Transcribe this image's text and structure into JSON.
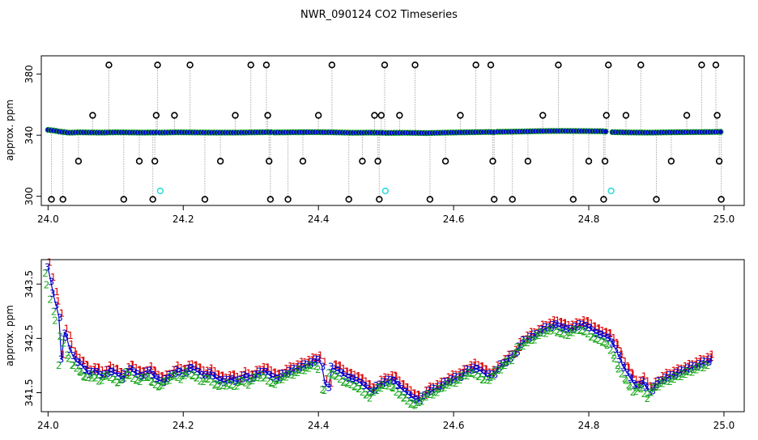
{
  "chart_data": [
    {
      "type": "scatter",
      "title": "NWR_090124  CO2 Timeseries",
      "xlabel": "",
      "ylabel": "approx. ppm",
      "xlim": [
        23.99,
        25.03
      ],
      "ylim": [
        294,
        392
      ],
      "xticks": [
        "24.0",
        "24.2",
        "24.4",
        "24.6",
        "24.8",
        "25.0"
      ],
      "yticks": [
        "300",
        "340",
        "380"
      ],
      "colors": {
        "baseline": "#0000cc",
        "baseline_outline": "#1faa1f",
        "spike": "#000000",
        "low_flag": "#33dddd",
        "connector": "#aaaaaa"
      },
      "baseline_segments": [
        {
          "x": [
            24.0,
            24.005,
            24.01,
            24.015,
            24.02,
            24.025,
            24.03,
            24.045,
            24.06,
            24.08,
            24.1,
            24.12,
            24.14,
            24.16
          ],
          "y": [
            343.5,
            343.2,
            343.0,
            342.5,
            342.2,
            342.0,
            341.6,
            341.9,
            341.8,
            341.7,
            341.9,
            341.8,
            341.7,
            341.8
          ]
        },
        {
          "x": [
            24.165,
            24.19,
            24.22,
            24.25,
            24.28,
            24.31,
            24.33
          ],
          "y": [
            341.7,
            341.9,
            341.8,
            341.7,
            341.7,
            341.9,
            342.0
          ]
        },
        {
          "x": [
            24.335,
            24.36,
            24.39,
            24.42,
            24.45,
            24.48,
            24.495
          ],
          "y": [
            341.8,
            341.9,
            342.0,
            341.9,
            341.6,
            341.7,
            341.6
          ]
        },
        {
          "x": [
            24.5,
            24.53,
            24.56,
            24.59,
            24.62,
            24.65,
            24.66
          ],
          "y": [
            341.5,
            341.6,
            341.4,
            341.7,
            341.9,
            342.1,
            342.0
          ]
        },
        {
          "x": [
            24.665,
            24.7,
            24.73,
            24.76,
            24.79,
            24.82,
            24.825
          ],
          "y": [
            342.2,
            342.4,
            342.7,
            342.8,
            342.7,
            342.6,
            342.4
          ]
        },
        {
          "x": [
            24.835,
            24.86,
            24.89,
            24.92,
            24.95,
            24.98,
            24.995
          ],
          "y": [
            342.0,
            341.8,
            341.7,
            341.9,
            342.0,
            342.1,
            342.2
          ]
        }
      ],
      "spikes": [
        {
          "x": 24.005,
          "y": 298
        },
        {
          "x": 24.022,
          "y": 298
        },
        {
          "x": 24.045,
          "y": 323
        },
        {
          "x": 24.066,
          "y": 353
        },
        {
          "x": 24.09,
          "y": 386
        },
        {
          "x": 24.112,
          "y": 298
        },
        {
          "x": 24.135,
          "y": 323
        },
        {
          "x": 24.155,
          "y": 298
        },
        {
          "x": 24.158,
          "y": 323
        },
        {
          "x": 24.16,
          "y": 353
        },
        {
          "x": 24.162,
          "y": 386
        },
        {
          "x": 24.187,
          "y": 353
        },
        {
          "x": 24.21,
          "y": 386
        },
        {
          "x": 24.232,
          "y": 298
        },
        {
          "x": 24.255,
          "y": 323
        },
        {
          "x": 24.277,
          "y": 353
        },
        {
          "x": 24.3,
          "y": 386
        },
        {
          "x": 24.323,
          "y": 386
        },
        {
          "x": 24.325,
          "y": 353
        },
        {
          "x": 24.327,
          "y": 323
        },
        {
          "x": 24.329,
          "y": 298
        },
        {
          "x": 24.355,
          "y": 298
        },
        {
          "x": 24.377,
          "y": 323
        },
        {
          "x": 24.4,
          "y": 353
        },
        {
          "x": 24.42,
          "y": 386
        },
        {
          "x": 24.445,
          "y": 298
        },
        {
          "x": 24.465,
          "y": 323
        },
        {
          "x": 24.483,
          "y": 353
        },
        {
          "x": 24.488,
          "y": 323
        },
        {
          "x": 24.49,
          "y": 298
        },
        {
          "x": 24.493,
          "y": 353
        },
        {
          "x": 24.498,
          "y": 386
        },
        {
          "x": 24.52,
          "y": 353
        },
        {
          "x": 24.543,
          "y": 386
        },
        {
          "x": 24.565,
          "y": 298
        },
        {
          "x": 24.588,
          "y": 323
        },
        {
          "x": 24.61,
          "y": 353
        },
        {
          "x": 24.633,
          "y": 386
        },
        {
          "x": 24.655,
          "y": 386
        },
        {
          "x": 24.658,
          "y": 323
        },
        {
          "x": 24.66,
          "y": 298
        },
        {
          "x": 24.687,
          "y": 298
        },
        {
          "x": 24.71,
          "y": 323
        },
        {
          "x": 24.732,
          "y": 353
        },
        {
          "x": 24.755,
          "y": 386
        },
        {
          "x": 24.777,
          "y": 298
        },
        {
          "x": 24.8,
          "y": 323
        },
        {
          "x": 24.822,
          "y": 298
        },
        {
          "x": 24.824,
          "y": 323
        },
        {
          "x": 24.826,
          "y": 353
        },
        {
          "x": 24.829,
          "y": 386
        },
        {
          "x": 24.855,
          "y": 353
        },
        {
          "x": 24.877,
          "y": 386
        },
        {
          "x": 24.9,
          "y": 298
        },
        {
          "x": 24.922,
          "y": 323
        },
        {
          "x": 24.945,
          "y": 353
        },
        {
          "x": 24.967,
          "y": 386
        },
        {
          "x": 24.988,
          "y": 386
        },
        {
          "x": 24.99,
          "y": 353
        },
        {
          "x": 24.993,
          "y": 323
        },
        {
          "x": 24.996,
          "y": 298
        }
      ],
      "low_flags": [
        {
          "x": 24.166,
          "y": 303.5
        },
        {
          "x": 24.499,
          "y": 303.5
        },
        {
          "x": 24.833,
          "y": 303.5
        }
      ]
    },
    {
      "type": "scatter",
      "title": "",
      "xlabel": "",
      "ylabel": "approx. ppm",
      "xlim": [
        23.99,
        25.03
      ],
      "ylim": [
        341.15,
        343.95
      ],
      "xticks": [
        "24.0",
        "24.2",
        "24.4",
        "24.6",
        "24.8",
        "25.0"
      ],
      "yticks": [
        "341.5",
        "342.5",
        "343.5"
      ],
      "marker_labels": [
        "1",
        "2",
        "3"
      ],
      "colors": {
        "marker_1": "#dd0000",
        "marker_2": "#1faa1f",
        "marker_3": "#0000cc",
        "line": "#0000cc"
      },
      "series": [
        {
          "x": [
            24.0,
            24.004,
            24.008,
            24.012,
            24.016,
            24.02,
            24.024,
            24.028,
            24.032,
            24.04,
            24.05,
            24.06,
            24.07,
            24.08,
            24.09,
            24.1,
            24.11,
            24.12,
            24.13,
            24.14,
            24.15,
            24.16,
            24.17,
            24.18,
            24.19,
            24.2,
            24.21,
            24.22,
            24.23,
            24.24,
            24.25,
            24.26,
            24.27,
            24.28,
            24.29,
            24.3,
            24.31,
            24.32,
            24.33,
            24.34,
            24.35,
            24.36,
            24.37,
            24.38,
            24.39,
            24.4,
            24.405,
            24.41,
            24.415,
            24.42,
            24.43,
            24.44,
            24.45,
            24.46,
            24.47,
            24.48,
            24.49,
            24.5,
            24.51,
            24.52,
            24.53,
            24.54,
            24.55,
            24.56,
            24.57,
            24.58,
            24.59,
            24.6,
            24.61,
            24.62,
            24.63,
            24.64,
            24.65,
            24.66,
            24.67,
            24.68,
            24.69,
            24.7,
            24.71,
            24.72,
            24.73,
            24.74,
            24.75,
            24.76,
            24.77,
            24.78,
            24.79,
            24.8,
            24.81,
            24.82,
            24.83,
            24.84,
            24.85,
            24.86,
            24.87,
            24.88,
            24.89,
            24.9,
            24.91,
            24.92,
            24.93,
            24.94,
            24.95,
            24.96,
            24.97,
            24.98
          ],
          "y": [
            343.8,
            343.55,
            343.3,
            343.1,
            342.9,
            342.1,
            342.6,
            342.5,
            342.3,
            342.1,
            342.0,
            341.85,
            341.9,
            341.8,
            341.9,
            341.85,
            341.75,
            341.95,
            341.85,
            341.8,
            341.9,
            341.75,
            341.7,
            341.8,
            341.9,
            341.85,
            341.95,
            341.9,
            341.8,
            341.85,
            341.75,
            341.7,
            341.75,
            341.7,
            341.8,
            341.75,
            341.85,
            341.9,
            341.8,
            341.75,
            341.85,
            341.9,
            341.95,
            342.0,
            342.05,
            342.1,
            342.0,
            341.65,
            341.6,
            341.95,
            341.9,
            341.8,
            341.75,
            341.7,
            341.6,
            341.5,
            341.65,
            341.7,
            341.75,
            341.6,
            341.5,
            341.4,
            341.35,
            341.5,
            341.55,
            341.6,
            341.7,
            341.75,
            341.8,
            341.9,
            341.95,
            341.9,
            341.8,
            341.85,
            342.0,
            342.1,
            342.2,
            342.4,
            342.5,
            342.55,
            342.65,
            342.7,
            342.75,
            342.7,
            342.65,
            342.7,
            342.75,
            342.7,
            342.6,
            342.55,
            342.5,
            342.3,
            342.0,
            341.8,
            341.6,
            341.7,
            341.5,
            341.65,
            341.75,
            341.8,
            341.85,
            341.9,
            341.95,
            342.0,
            342.05,
            342.1
          ]
        }
      ]
    }
  ]
}
